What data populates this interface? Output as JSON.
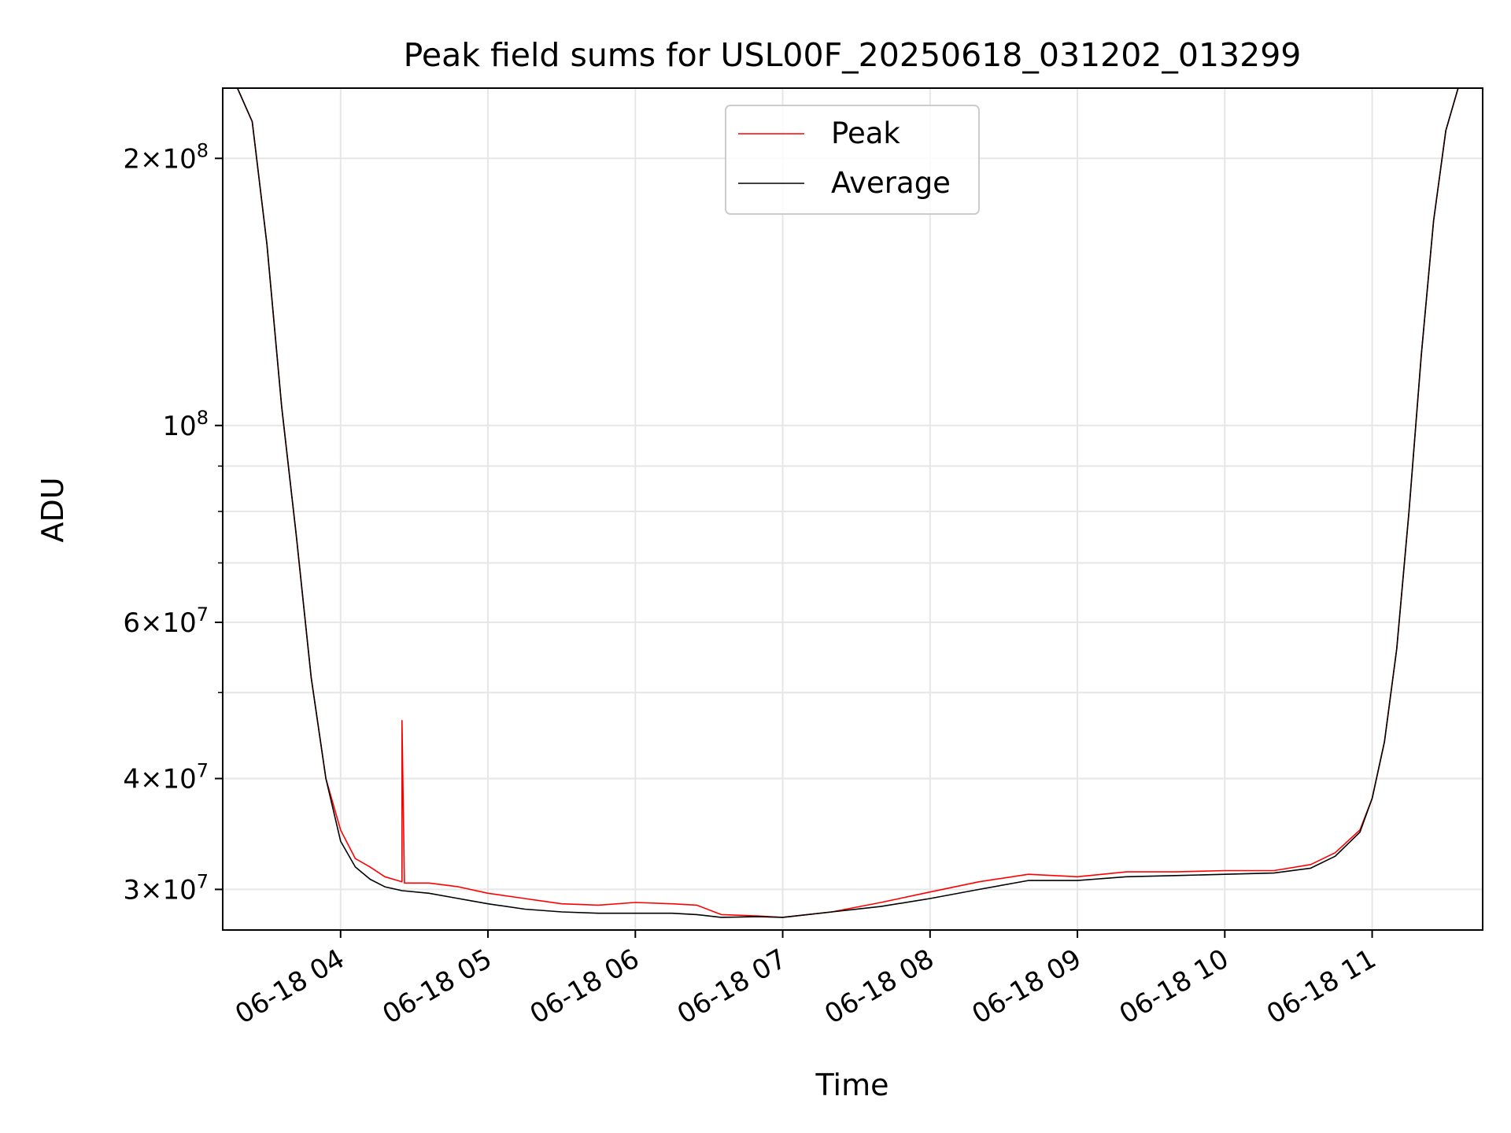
{
  "chart_data": {
    "type": "line",
    "title": "Peak field sums for USL00F_20250618_031202_013299",
    "xlabel": "Time",
    "ylabel": "ADU",
    "y_scale": "log",
    "xlim": [
      "2025-06-18 03:12",
      "2025-06-18 11:45"
    ],
    "ylim": [
      27000000,
      240000000
    ],
    "grid": true,
    "legend_position": "upper center",
    "x_ticks": [
      {
        "value": "2025-06-18 04:00",
        "label": "06-18 04"
      },
      {
        "value": "2025-06-18 05:00",
        "label": "06-18 05"
      },
      {
        "value": "2025-06-18 06:00",
        "label": "06-18 06"
      },
      {
        "value": "2025-06-18 07:00",
        "label": "06-18 07"
      },
      {
        "value": "2025-06-18 08:00",
        "label": "06-18 08"
      },
      {
        "value": "2025-06-18 09:00",
        "label": "06-18 09"
      },
      {
        "value": "2025-06-18 10:00",
        "label": "06-18 10"
      },
      {
        "value": "2025-06-18 11:00",
        "label": "06-18 11"
      }
    ],
    "y_ticks": [
      {
        "value": 30000000,
        "mantissa": "3",
        "exponent": "7"
      },
      {
        "value": 40000000,
        "mantissa": "4",
        "exponent": "7"
      },
      {
        "value": 60000000,
        "mantissa": "6",
        "exponent": "7"
      },
      {
        "value": 100000000,
        "mantissa": "",
        "exponent": "8"
      },
      {
        "value": 200000000,
        "mantissa": "2",
        "exponent": "8"
      }
    ],
    "y_minor_ticks": [
      50000000,
      70000000,
      80000000,
      90000000
    ],
    "series": [
      {
        "name": "Peak",
        "color": "#ff0000",
        "x": [
          "2025-06-18 03:12",
          "2025-06-18 03:18",
          "2025-06-18 03:24",
          "2025-06-18 03:30",
          "2025-06-18 03:36",
          "2025-06-18 03:42",
          "2025-06-18 03:48",
          "2025-06-18 03:54",
          "2025-06-18 04:00",
          "2025-06-18 04:06",
          "2025-06-18 04:12",
          "2025-06-18 04:18",
          "2025-06-18 04:25",
          "2025-06-18 04:25",
          "2025-06-18 04:26",
          "2025-06-18 04:36",
          "2025-06-18 04:48",
          "2025-06-18 05:00",
          "2025-06-18 05:15",
          "2025-06-18 05:30",
          "2025-06-18 05:45",
          "2025-06-18 06:00",
          "2025-06-18 06:15",
          "2025-06-18 06:25",
          "2025-06-18 06:35",
          "2025-06-18 06:50",
          "2025-06-18 07:00",
          "2025-06-18 07:20",
          "2025-06-18 07:40",
          "2025-06-18 08:00",
          "2025-06-18 08:20",
          "2025-06-18 08:40",
          "2025-06-18 09:00",
          "2025-06-18 09:20",
          "2025-06-18 09:40",
          "2025-06-18 10:00",
          "2025-06-18 10:20",
          "2025-06-18 10:35",
          "2025-06-18 10:45",
          "2025-06-18 10:55",
          "2025-06-18 11:00",
          "2025-06-18 11:05",
          "2025-06-18 11:10",
          "2025-06-18 11:15",
          "2025-06-18 11:20",
          "2025-06-18 11:25",
          "2025-06-18 11:30",
          "2025-06-18 11:35",
          "2025-06-18 11:45"
        ],
        "y": [
          240000000,
          240000000,
          220000000,
          160000000,
          105000000,
          75000000,
          52000000,
          40000000,
          35000000,
          32500000,
          31800000,
          31000000,
          30600000,
          46500000,
          30500000,
          30500000,
          30200000,
          29700000,
          29300000,
          28900000,
          28800000,
          29000000,
          28900000,
          28800000,
          28100000,
          28000000,
          27900000,
          28300000,
          29000000,
          29800000,
          30600000,
          31200000,
          31000000,
          31400000,
          31400000,
          31500000,
          31500000,
          32000000,
          33000000,
          35000000,
          38000000,
          44000000,
          56000000,
          80000000,
          120000000,
          170000000,
          215000000,
          240000000,
          240000000
        ]
      },
      {
        "name": "Average",
        "color": "#000000",
        "x": [
          "2025-06-18 03:12",
          "2025-06-18 03:18",
          "2025-06-18 03:24",
          "2025-06-18 03:30",
          "2025-06-18 03:36",
          "2025-06-18 03:42",
          "2025-06-18 03:48",
          "2025-06-18 03:54",
          "2025-06-18 04:00",
          "2025-06-18 04:06",
          "2025-06-18 04:12",
          "2025-06-18 04:18",
          "2025-06-18 04:25",
          "2025-06-18 04:36",
          "2025-06-18 04:48",
          "2025-06-18 05:00",
          "2025-06-18 05:15",
          "2025-06-18 05:30",
          "2025-06-18 05:45",
          "2025-06-18 06:00",
          "2025-06-18 06:15",
          "2025-06-18 06:25",
          "2025-06-18 06:35",
          "2025-06-18 06:50",
          "2025-06-18 07:00",
          "2025-06-18 07:20",
          "2025-06-18 07:40",
          "2025-06-18 08:00",
          "2025-06-18 08:20",
          "2025-06-18 08:40",
          "2025-06-18 09:00",
          "2025-06-18 09:20",
          "2025-06-18 09:40",
          "2025-06-18 10:00",
          "2025-06-18 10:20",
          "2025-06-18 10:35",
          "2025-06-18 10:45",
          "2025-06-18 10:55",
          "2025-06-18 11:00",
          "2025-06-18 11:05",
          "2025-06-18 11:10",
          "2025-06-18 11:15",
          "2025-06-18 11:20",
          "2025-06-18 11:25",
          "2025-06-18 11:30",
          "2025-06-18 11:35",
          "2025-06-18 11:45"
        ],
        "y": [
          240000000,
          240000000,
          220000000,
          160000000,
          105000000,
          75000000,
          52000000,
          40000000,
          34000000,
          31800000,
          30800000,
          30200000,
          29900000,
          29700000,
          29300000,
          28900000,
          28500000,
          28300000,
          28200000,
          28200000,
          28200000,
          28100000,
          27900000,
          27950000,
          27900000,
          28300000,
          28700000,
          29300000,
          30000000,
          30700000,
          30700000,
          31000000,
          31100000,
          31200000,
          31300000,
          31700000,
          32700000,
          34800000,
          38000000,
          44000000,
          56000000,
          80000000,
          120000000,
          170000000,
          215000000,
          240000000,
          240000000
        ]
      }
    ]
  }
}
